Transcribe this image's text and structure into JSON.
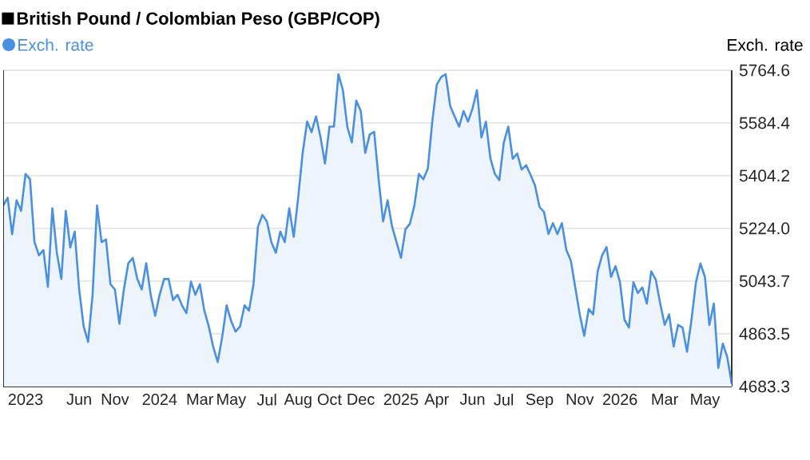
{
  "chart_data": {
    "type": "area",
    "title": "British Pound / Colombian Peso (GBP/COP)",
    "ylabel": "Exch. rate",
    "categories": [
      null,
      null,
      null,
      null,
      null,
      "2023",
      null,
      null,
      null,
      null,
      null,
      null,
      null,
      null,
      null,
      null,
      null,
      "Jun",
      null,
      null,
      null,
      null,
      null,
      null,
      null,
      "Nov",
      null,
      null,
      null,
      null,
      null,
      null,
      null,
      null,
      null,
      "2024",
      null,
      null,
      null,
      null,
      null,
      null,
      null,
      null,
      "Mar",
      null,
      null,
      null,
      null,
      null,
      null,
      "May",
      null,
      null,
      null,
      null,
      null,
      null,
      null,
      "Jul",
      null,
      null,
      null,
      null,
      null,
      null,
      "Aug",
      null,
      null,
      null,
      null,
      null,
      null,
      "Oct",
      null,
      null,
      null,
      null,
      null,
      null,
      "Dec",
      null,
      null,
      null,
      null,
      null,
      null,
      null,
      null,
      "2025",
      null,
      null,
      null,
      null,
      null,
      null,
      null,
      "Apr",
      null,
      null,
      null,
      null,
      null,
      null,
      null,
      "Jun",
      null,
      null,
      null,
      null,
      null,
      null,
      "Jul",
      null,
      null,
      null,
      null,
      null,
      null,
      null,
      "Sep",
      null,
      null,
      null,
      null,
      null,
      null,
      null,
      null,
      "Nov",
      null,
      null,
      null,
      null,
      null,
      null,
      null,
      null,
      "2026",
      null,
      null,
      null,
      null,
      null,
      null,
      null,
      null,
      null,
      "Mar",
      null,
      null,
      null,
      null,
      null,
      null,
      null,
      null,
      "May",
      null,
      null,
      null,
      null,
      null,
      null
    ],
    "series": [
      {
        "name": "Exch. rate",
        "color": "#4a90e2",
        "values": [
          5302,
          5329,
          5204,
          5320,
          5284,
          5410,
          5392,
          5177,
          5132,
          5150,
          5024,
          5293,
          5141,
          5051,
          5284,
          5159,
          5213,
          5015,
          4889,
          4836,
          4997,
          5302,
          5177,
          5186,
          5033,
          5015,
          4898,
          5015,
          5105,
          5123,
          5051,
          5015,
          5105,
          4997,
          4925,
          4997,
          5051,
          5051,
          4979,
          4997,
          4961,
          4934,
          5042,
          4997,
          5033,
          4943,
          4889,
          4818,
          4767,
          4853,
          4961,
          4907,
          4871,
          4889,
          4961,
          4943,
          5033,
          5230,
          5270,
          5248,
          5177,
          5141,
          5213,
          5177,
          5293,
          5195,
          5329,
          5482,
          5589,
          5553,
          5607,
          5536,
          5446,
          5572,
          5572,
          5751,
          5697,
          5571,
          5518,
          5661,
          5625,
          5482,
          5545,
          5554,
          5392,
          5248,
          5320,
          5231,
          5177,
          5123,
          5221,
          5240,
          5302,
          5410,
          5392,
          5428,
          5589,
          5715,
          5742,
          5751,
          5643,
          5607,
          5572,
          5625,
          5589,
          5634,
          5697,
          5535,
          5589,
          5464,
          5410,
          5389,
          5517,
          5572,
          5462,
          5480,
          5425,
          5440,
          5407,
          5370,
          5297,
          5280,
          5205,
          5242,
          5205,
          5242,
          5150,
          5114,
          5022,
          4930,
          4857,
          4948,
          4930,
          5077,
          5132,
          5160,
          5058,
          5095,
          5040,
          4912,
          4885,
          5040,
          5003,
          5022,
          4967,
          5077,
          5049,
          4967,
          4894,
          4930,
          4820,
          4894,
          4885,
          4802,
          4912,
          5040,
          5104,
          5058,
          4894,
          4967,
          4747,
          4830,
          4784,
          4692
        ]
      }
    ],
    "ylim": [
      4683.3,
      5764.6
    ],
    "yticks": [
      4683.3,
      4863.5,
      5043.7,
      {
        "value": 5224,
        "label": "5224.0"
      },
      5404.2,
      5584.4,
      5764.6
    ],
    "grid": "y",
    "legend": "top left"
  }
}
